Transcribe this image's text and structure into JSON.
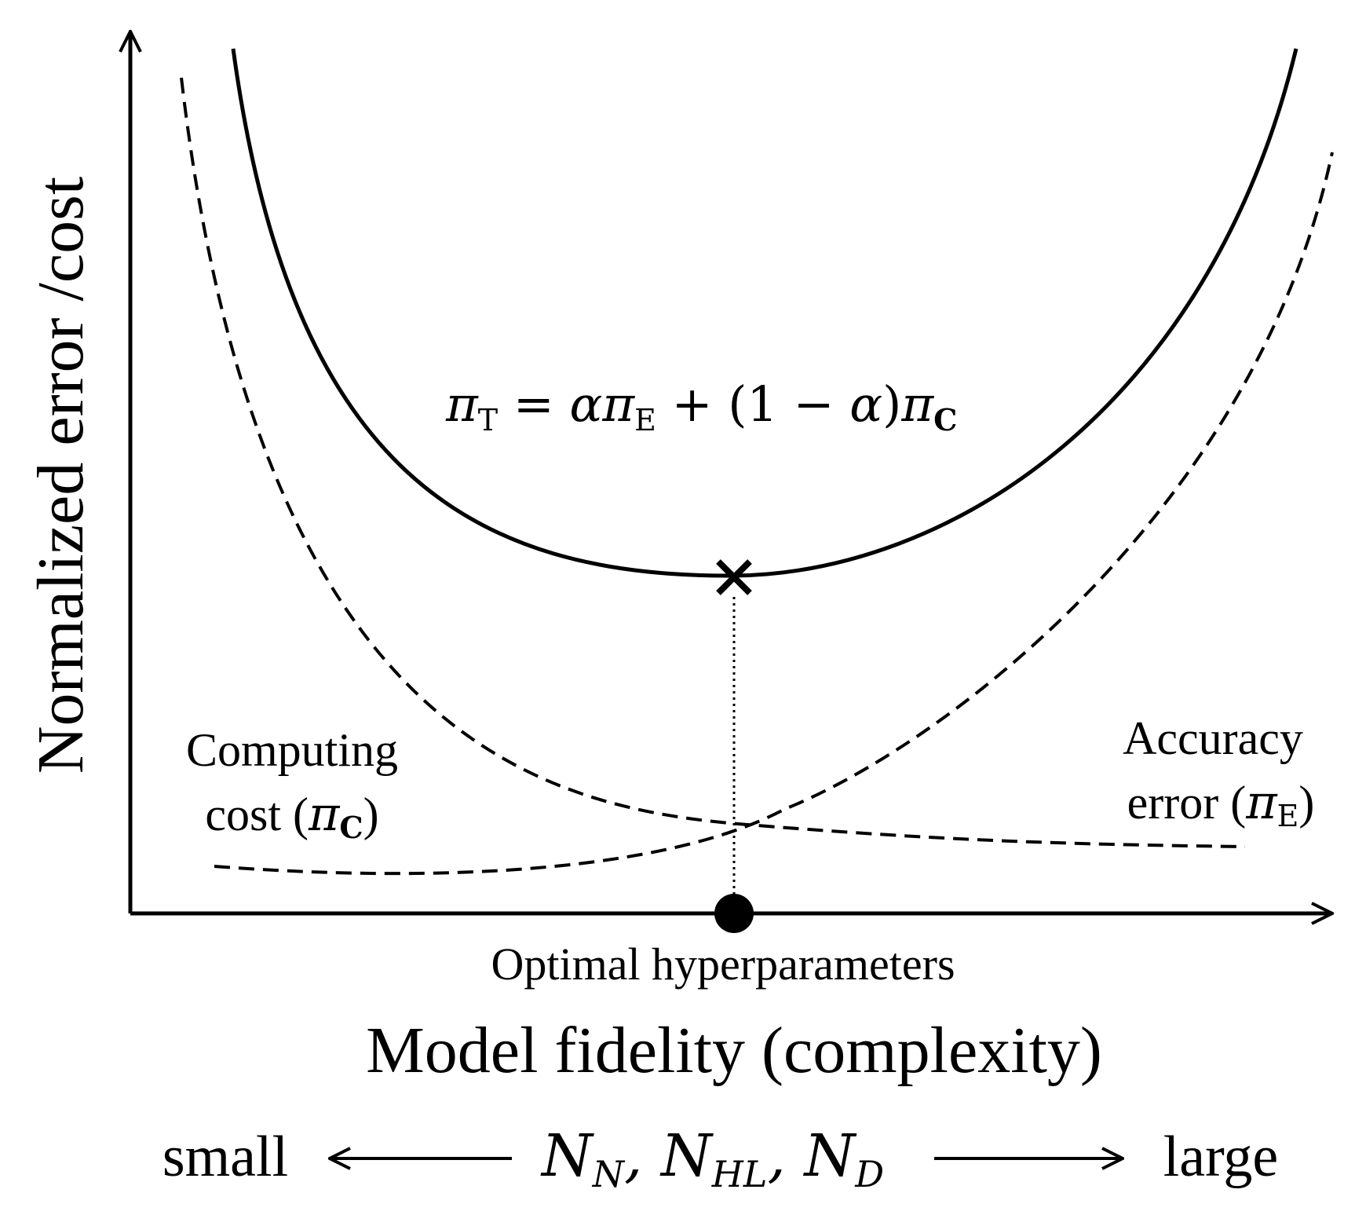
{
  "y_axis_label": "Normalized error /cost",
  "x_axis_label": "Model fidelity (complexity)",
  "optimum_label": "Optimal hyperparameters",
  "total_equation": {
    "pi": "π",
    "sub_t": "T",
    "eq": " = ",
    "alpha1": "α",
    "pi2": "π",
    "sub_e": "E",
    "plus": " + (1 − ",
    "alpha2": "α",
    "close": ")",
    "pi3": "π",
    "sub_c": "C"
  },
  "computing_cost": {
    "line1": "Computing",
    "line2_prefix": "cost (",
    "symbol": "π",
    "sub": "C",
    "suffix": ")"
  },
  "accuracy_error": {
    "line1": "Accuracy",
    "line2_prefix": "error (",
    "symbol": "π",
    "sub": "E",
    "suffix": ")"
  },
  "scale": {
    "left": "small",
    "right": "large",
    "vars": [
      {
        "base": "N",
        "sub": "N",
        "sep": ", "
      },
      {
        "base": "N",
        "sub": "HL",
        "sep": ", "
      },
      {
        "base": "N",
        "sub": "D",
        "sep": ""
      }
    ]
  },
  "colors": {
    "line": "#000000",
    "background": "#ffffff"
  },
  "line_styles": {
    "total": "solid",
    "computing_cost": "dashed",
    "accuracy_error": "dashed",
    "optimum_drop": "dotted"
  },
  "markers": {
    "optimum_total": "cross-icon",
    "optimum_axis": "filled-circle"
  }
}
